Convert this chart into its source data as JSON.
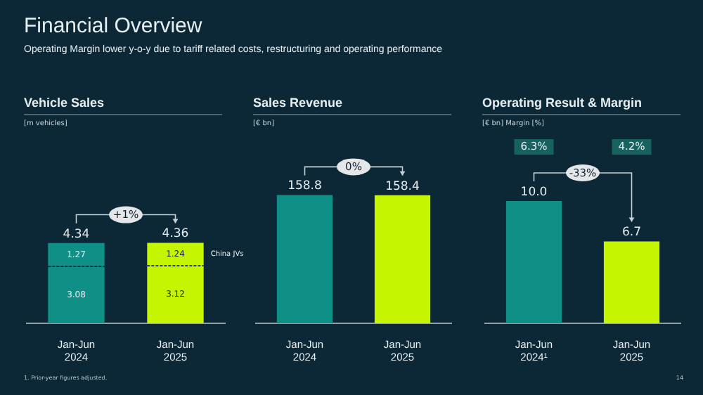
{
  "chart_data": [
    {
      "type": "other",
      "title": "Financial Overview",
      "subtitle": "Operating Margin lower y-o-y due to tariff related costs, restructuring and operating performance",
      "annotations": [
        "1. Prior-year figures adjusted.",
        "14"
      ]
    },
    {
      "type": "bar",
      "title": "Vehicle Sales",
      "subtitle": "[m vehicles]",
      "categories": [
        "Jan-Jun 2024",
        "Jan-Jun 2025"
      ],
      "stacked": true,
      "data_labels": true,
      "totals": [
        "4.34",
        "4.36"
      ],
      "annotations": [
        "+1%"
      ],
      "series": [
        {
          "colors": [
            "#0f8f86",
            "#c6f500"
          ],
          "values": [
            3.08,
            3.12
          ]
        },
        {
          "name": "China JVs",
          "colors": [
            "#0f8f86",
            "#c6f500"
          ],
          "values": [
            1.27,
            1.24
          ]
        }
      ]
    },
    {
      "type": "bar",
      "title": "Sales Revenue",
      "subtitle": "[€ bn]",
      "categories": [
        "Jan-Jun 2024",
        "Jan-Jun 2025"
      ],
      "values": [
        158.8,
        158.4
      ],
      "colors": [
        "#0f8f86",
        "#c6f500"
      ],
      "data_labels": true,
      "annotations": [
        "0%"
      ]
    },
    {
      "type": "bar",
      "title": "Operating Result & Margin",
      "subtitle": "[€ bn] Margin [%]",
      "categories": [
        "Jan-Jun 2024¹",
        "Jan-Jun 2025"
      ],
      "values": [
        10.0,
        6.7
      ],
      "value_labels": [
        "10.0",
        "6.7"
      ],
      "colors": [
        "#0f8f86",
        "#c6f500"
      ],
      "annotations": [
        "-33%",
        "6.3%",
        "4.2%"
      ]
    }
  ]
}
